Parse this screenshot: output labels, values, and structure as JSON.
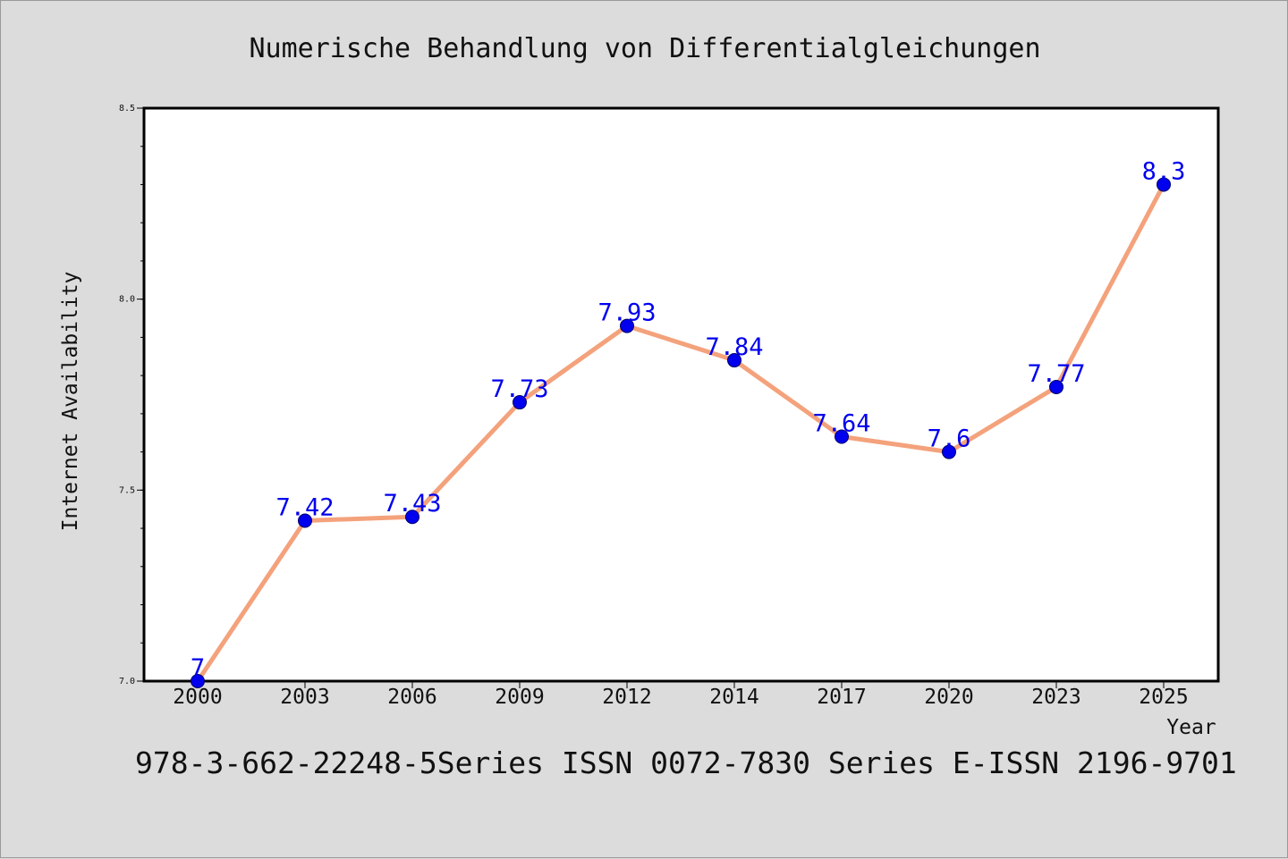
{
  "chart_data": {
    "type": "line",
    "title": "Numerische Behandlung von Differentialgleichungen",
    "footer": "978-3-662-22248-5Series ISSN 0072-7830 Series E-ISSN 2196-9701",
    "xlabel": "Year",
    "ylabel": "Internet Availability",
    "categories": [
      "2000",
      "2003",
      "2006",
      "2009",
      "2012",
      "2014",
      "2017",
      "2020",
      "2023",
      "2025"
    ],
    "series": [
      {
        "values": [
          7,
          7.42,
          7.43,
          7.73,
          7.93,
          7.84,
          7.64,
          7.6,
          7.77,
          8.3
        ]
      }
    ],
    "data_labels": [
      "7",
      "7.42",
      "7.43",
      "7.73",
      "7.93",
      "7.84",
      "7.64",
      "7.6",
      "7.77",
      "8.3"
    ],
    "ylim": [
      7.0,
      8.5
    ],
    "yticks": [
      "7.0",
      "7.5",
      "8.0",
      "8.5"
    ],
    "yticks_values": [
      7.0,
      7.5,
      8.0,
      8.5
    ],
    "grid": false,
    "legend": "none",
    "colors": {
      "line": "#f4a27c",
      "marker": "#0000ee",
      "marker_edge": "#000066",
      "label": "#0000ee",
      "background": "#dcdcdc",
      "plot_background": "#ffffff"
    }
  }
}
